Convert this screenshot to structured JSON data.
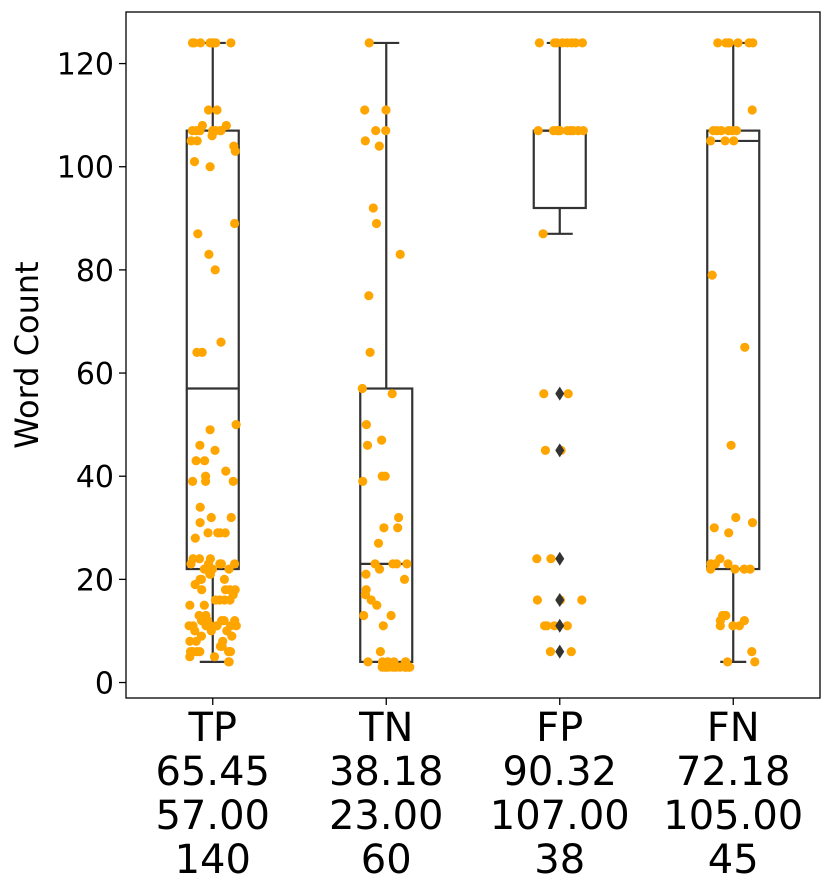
{
  "chart_data": {
    "type": "box",
    "ylabel": "Word Count",
    "ylim": [
      -3,
      130
    ],
    "yticks": [
      0,
      20,
      40,
      60,
      80,
      100,
      120
    ],
    "colors": {
      "box_edge": "#333333",
      "points": "#ffa500",
      "outliers": "#333333",
      "axis": "#000000"
    },
    "categories": [
      {
        "name": "TP",
        "stats": [
          "65.45",
          "57.00",
          "140"
        ],
        "box": {
          "whisker_low": 4,
          "q1": 22,
          "median": 57,
          "q3": 107,
          "whisker_high": 124
        },
        "outliers": [],
        "points": [
          124,
          124,
          124,
          124,
          124,
          124,
          124,
          124,
          111,
          111,
          108,
          108,
          107,
          107,
          107,
          107,
          107,
          107,
          107,
          106,
          105,
          105,
          104,
          103,
          101,
          100,
          89,
          87,
          83,
          80,
          66,
          64,
          64,
          50,
          49,
          46,
          45,
          43,
          43,
          41,
          40,
          39,
          39,
          39,
          34,
          32,
          32,
          31,
          29,
          29,
          29,
          29,
          28,
          24,
          24,
          24,
          23,
          23,
          23,
          23,
          23,
          22,
          22,
          22,
          22,
          22,
          21,
          21,
          20,
          20,
          20,
          19,
          18,
          18,
          18,
          18,
          17,
          16,
          16,
          16,
          16,
          15,
          15,
          13,
          13,
          12,
          12,
          12,
          12,
          12,
          11,
          11,
          11,
          11,
          11,
          11,
          11,
          11,
          11,
          10,
          10,
          10,
          9,
          9,
          8,
          8,
          8,
          7,
          7,
          6,
          6,
          6,
          6,
          6,
          6,
          5,
          5,
          4,
          4
        ]
      },
      {
        "name": "TN",
        "stats": [
          "38.18",
          "23.00",
          "60"
        ],
        "box": {
          "whisker_low": 4,
          "q1": 4,
          "median": 23,
          "q3": 57,
          "whisker_high": 124
        },
        "outliers": [],
        "points": [
          124,
          111,
          111,
          107,
          107,
          105,
          104,
          92,
          89,
          83,
          75,
          64,
          57,
          56,
          50,
          47,
          46,
          40,
          40,
          39,
          32,
          30,
          30,
          27,
          23,
          23,
          23,
          23,
          22,
          21,
          20,
          18,
          17,
          16,
          15,
          13,
          13,
          11,
          6,
          4,
          4,
          4,
          4,
          4,
          4,
          4,
          3,
          3,
          3,
          3,
          3,
          3,
          3,
          3,
          3,
          3,
          3,
          3,
          3,
          3
        ]
      },
      {
        "name": "FP",
        "stats": [
          "90.32",
          "107.00",
          "38"
        ],
        "box": {
          "whisker_low": 87,
          "q1": 92,
          "median": 107,
          "q3": 107,
          "whisker_high": 124
        },
        "outliers": [
          56,
          45,
          24,
          16,
          11,
          6
        ],
        "points": [
          124,
          124,
          124,
          124,
          124,
          124,
          124,
          124,
          107,
          107,
          107,
          107,
          107,
          107,
          107,
          107,
          107,
          107,
          87,
          56,
          56,
          45,
          45,
          24,
          24,
          16,
          16,
          16,
          11,
          11,
          11,
          11,
          6,
          6
        ]
      },
      {
        "name": "FN",
        "stats": [
          "72.18",
          "105.00",
          "45"
        ],
        "box": {
          "whisker_low": 4,
          "q1": 22,
          "median": 105,
          "q3": 107,
          "whisker_high": 124
        },
        "outliers": [],
        "points": [
          124,
          124,
          124,
          124,
          124,
          124,
          124,
          111,
          107,
          107,
          107,
          107,
          107,
          107,
          105,
          105,
          105,
          79,
          65,
          46,
          32,
          31,
          30,
          29,
          24,
          23,
          23,
          23,
          22,
          22,
          22,
          22,
          13,
          13,
          12,
          12,
          11,
          11,
          11,
          6,
          4,
          4
        ]
      }
    ]
  }
}
